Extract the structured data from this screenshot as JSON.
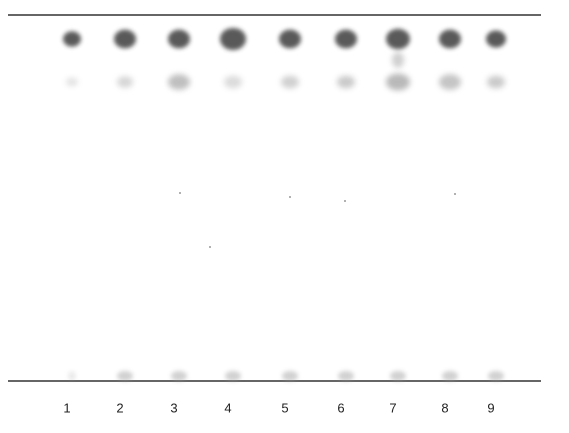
{
  "lanes": [
    "1",
    "2",
    "3",
    "4",
    "5",
    "6",
    "7",
    "8",
    "9"
  ]
}
